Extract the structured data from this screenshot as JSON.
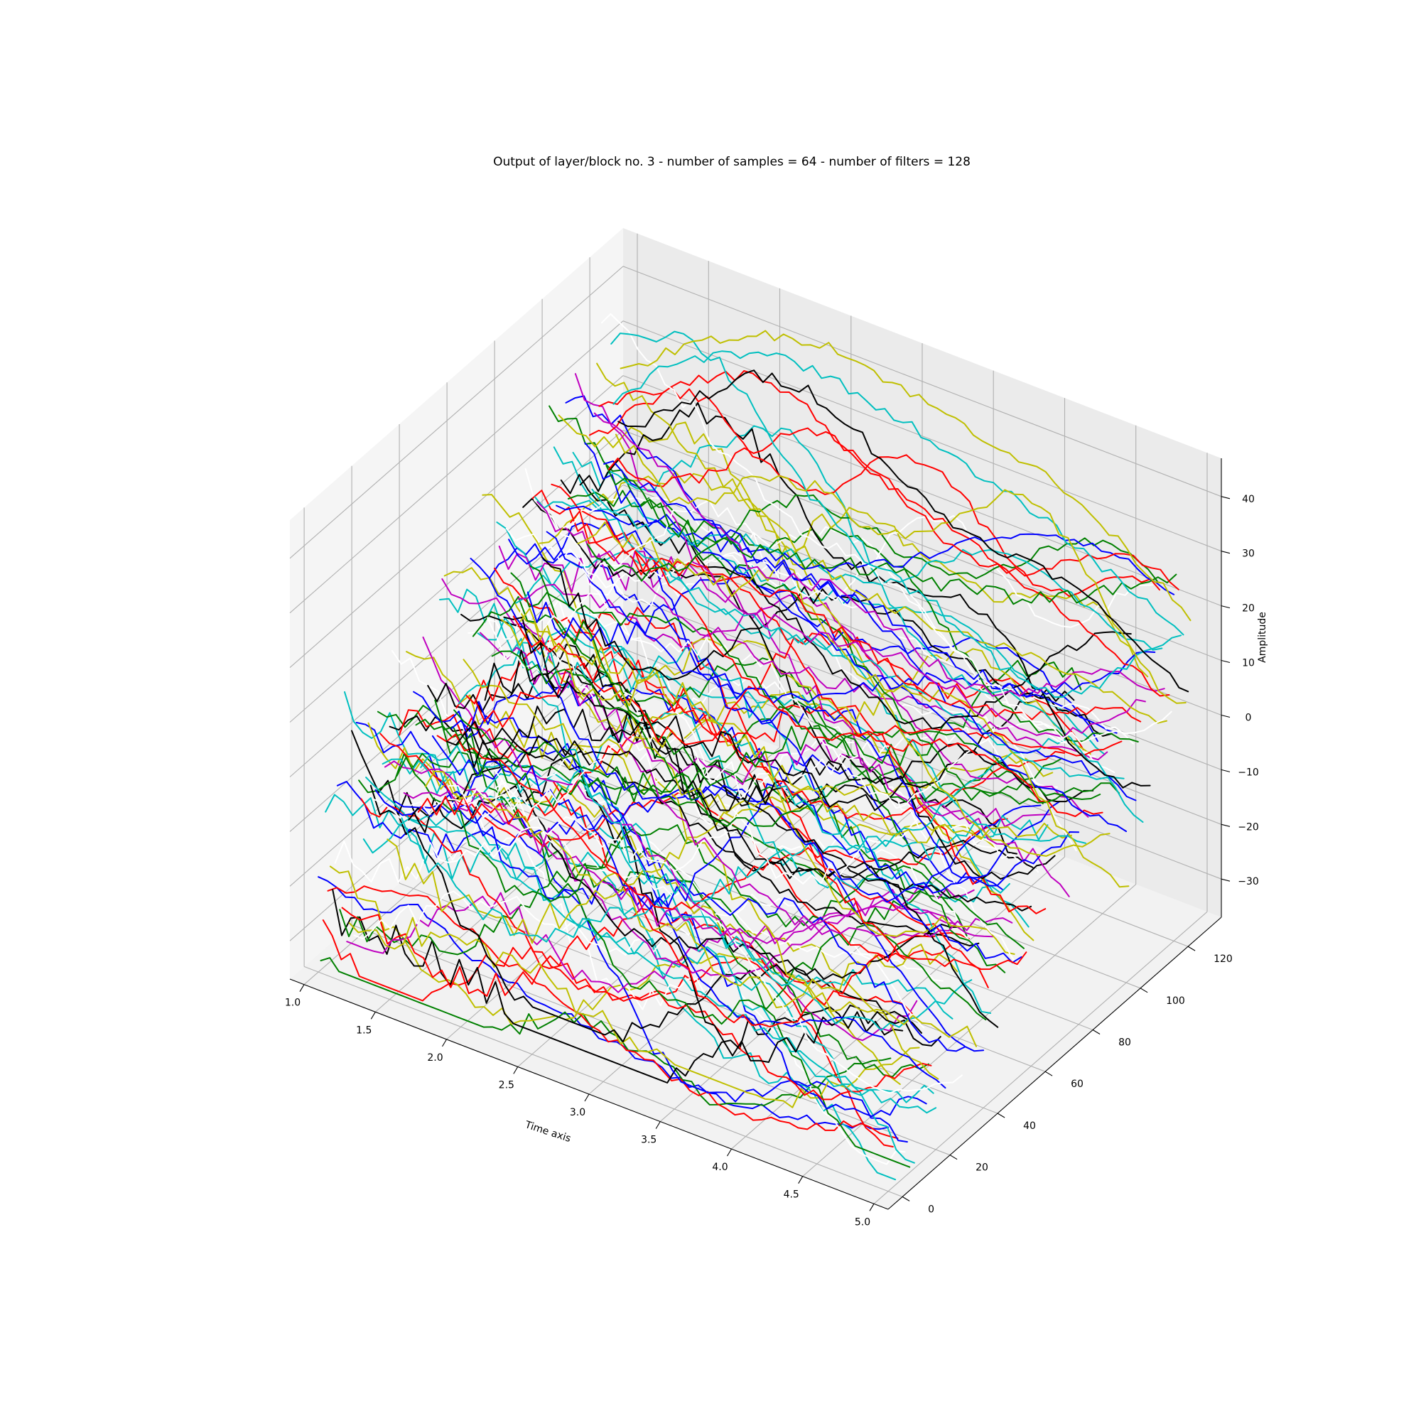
{
  "chart_data": {
    "type": "line",
    "subtype": "3d-line",
    "title": "Output of layer/block no. 3 - number of samples = 64 - number of filters = 128",
    "xlabel": "Time axis",
    "ylabel": "",
    "zlabel": "Amplitude",
    "xlim": [
      0.9,
      5.1
    ],
    "ylim": [
      -6,
      134
    ],
    "zlim": [
      -37,
      47
    ],
    "x_ticks": [
      "1.0",
      "1.5",
      "2.0",
      "2.5",
      "3.0",
      "3.5",
      "4.0",
      "4.5",
      "5.0"
    ],
    "y_ticks": [
      "0",
      "20",
      "40",
      "60",
      "80",
      "100",
      "120"
    ],
    "z_ticks": [
      "−30",
      "−20",
      "−10",
      "0",
      "10",
      "20",
      "30",
      "40"
    ],
    "grid": true,
    "num_samples": 64,
    "num_filters": 128,
    "x_range": [
      1.0,
      5.0
    ],
    "color_cycle": [
      "#0000ff",
      "#008000",
      "#ff0000",
      "#00bfbf",
      "#bf00bf",
      "#bfbf00",
      "#000000",
      "#ffffff"
    ],
    "representative_series": [
      {
        "filter": 0,
        "color": "#0000ff",
        "values": [
          -20,
          -22,
          -18,
          -24,
          -26,
          -28,
          -30,
          -31,
          -32,
          -30,
          -28,
          -26
        ]
      },
      {
        "filter": 4,
        "color": "#ff0000",
        "values": [
          -24,
          -20,
          -18,
          -22,
          -26,
          -30,
          -32,
          -34,
          -36,
          -34,
          -30,
          -28
        ]
      },
      {
        "filter": 20,
        "color": "#00bfbf",
        "values": [
          -10,
          -14,
          -12,
          -18,
          -20,
          -22,
          -24,
          -26,
          -28,
          -30,
          -32,
          -30
        ]
      },
      {
        "filter": 60,
        "color": "#000000",
        "values": [
          5,
          8,
          4,
          0,
          -4,
          -8,
          -10,
          -12,
          -14,
          -12,
          -10,
          -8
        ]
      },
      {
        "filter": 100,
        "color": "#0000ff",
        "values": [
          10,
          12,
          14,
          12,
          10,
          6,
          2,
          0,
          -4,
          -6,
          -8,
          -10
        ]
      },
      {
        "filter": 118,
        "color": "#ff0000",
        "values": [
          22,
          28,
          34,
          38,
          36,
          30,
          26,
          24,
          20,
          16,
          12,
          8
        ]
      },
      {
        "filter": 124,
        "color": "#00bfbf",
        "values": [
          20,
          30,
          36,
          40,
          40,
          38,
          36,
          32,
          30,
          26,
          22,
          18
        ]
      },
      {
        "filter": 127,
        "color": "#bfbf00",
        "values": [
          24,
          32,
          38,
          42,
          44,
          42,
          40,
          38,
          36,
          32,
          26,
          20
        ]
      }
    ]
  }
}
